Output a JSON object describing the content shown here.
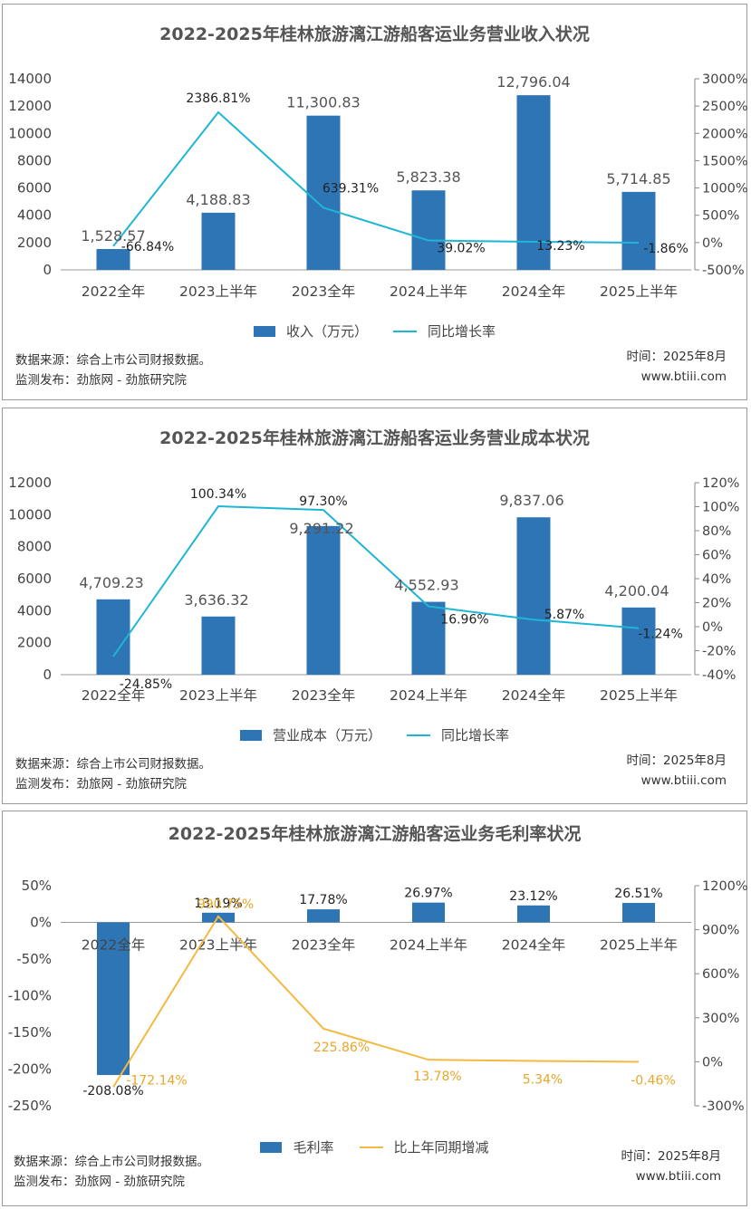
{
  "charts": [
    {
      "title": "2022-2025年桂林旅游漓江游船客运业务营业收入状况",
      "source_label": "数据来源：综合上市公司财报数据。",
      "publisher_label": "监测发布：劲旅网 - 劲旅研究院",
      "date_label": "时间：2025年8月",
      "site_label": "www.btiii.com",
      "legend_bar": "收入（万元）",
      "legend_line": "同比增长率",
      "line_color": "#1FB6D6"
    },
    {
      "title": "2022-2025年桂林旅游漓江游船客运业务营业成本状况",
      "source_label": "数据来源：综合上市公司财报数据。",
      "publisher_label": "监测发布：劲旅网 - 劲旅研究院",
      "date_label": "时间：2025年8月",
      "site_label": "www.btiii.com",
      "legend_bar": "营业成本（万元）",
      "legend_line": "同比增长率",
      "line_color": "#1FB6D6"
    },
    {
      "title": "2022-2025年桂林旅游漓江游船客运业务毛利率状况",
      "source_label": "数据来源：综合上市公司财报数据。",
      "publisher_label": "监测发布：劲旅网 - 劲旅研究院",
      "date_label": "时间：2025年8月",
      "site_label": "www.btiii.com",
      "legend_bar": "毛利率",
      "legend_line": "比上年同期增减",
      "line_color": "#F4B942"
    }
  ],
  "chart_data": [
    {
      "type": "bar",
      "categories": [
        "2022全年",
        "2023上半年",
        "2023全年",
        "2024上半年",
        "2024全年",
        "2025上半年"
      ],
      "series": [
        {
          "name": "收入（万元）",
          "type": "bar",
          "axis": "left",
          "values": [
            1528.57,
            4188.83,
            11300.83,
            5823.38,
            12796.04,
            5714.85
          ],
          "labels": [
            "1,528.57",
            "4,188.83",
            "11,300.83",
            "5,823.38",
            "12,796.04",
            "5,714.85"
          ],
          "color": "#2E75B6"
        },
        {
          "name": "同比增长率",
          "type": "line",
          "axis": "right",
          "values": [
            -66.84,
            2386.81,
            639.31,
            39.02,
            13.23,
            -1.86
          ],
          "labels": [
            "-66.84%",
            "2386.81%",
            "639.31%",
            "39.02%",
            "13.23%",
            "-1.86%"
          ],
          "color": "#1FB6D6"
        }
      ],
      "ylim_left": [
        0,
        14000
      ],
      "yticks_left": [
        "0",
        "2000",
        "4000",
        "6000",
        "8000",
        "10000",
        "12000",
        "14000"
      ],
      "ylim_right": [
        -500,
        3000
      ],
      "yticks_right": [
        "-500%",
        "0%",
        "500%",
        "1000%",
        "1500%",
        "2000%",
        "2500%",
        "3000%"
      ],
      "legend": "bottom",
      "grid": false
    },
    {
      "type": "bar",
      "categories": [
        "2022全年",
        "2023上半年",
        "2023全年",
        "2024上半年",
        "2024全年",
        "2025上半年"
      ],
      "series": [
        {
          "name": "营业成本（万元）",
          "type": "bar",
          "axis": "left",
          "values": [
            4709.23,
            3636.32,
            9291.22,
            4552.93,
            9837.06,
            4200.04
          ],
          "labels": [
            "4,709.23",
            "3,636.32",
            "9,291.22",
            "4,552.93",
            "9,837.06",
            "4,200.04"
          ],
          "color": "#2E75B6"
        },
        {
          "name": "同比增长率",
          "type": "line",
          "axis": "right",
          "values": [
            -24.85,
            100.34,
            97.3,
            16.96,
            5.87,
            -1.24
          ],
          "labels": [
            "-24.85%",
            "100.34%",
            "97.30%",
            "16.96%",
            "5.87%",
            "-1.24%"
          ],
          "color": "#1FB6D6"
        }
      ],
      "ylim_left": [
        0,
        12000
      ],
      "yticks_left": [
        "0",
        "2000",
        "4000",
        "6000",
        "8000",
        "10000",
        "12000"
      ],
      "ylim_right": [
        -40,
        120
      ],
      "yticks_right": [
        "-40%",
        "-20%",
        "0%",
        "20%",
        "40%",
        "60%",
        "80%",
        "100%",
        "120%"
      ],
      "legend": "bottom",
      "grid": false
    },
    {
      "type": "bar",
      "categories": [
        "2022全年",
        "2023上半年",
        "2023全年",
        "2024上半年",
        "2024全年",
        "2025上半年"
      ],
      "series": [
        {
          "name": "毛利率",
          "type": "bar",
          "axis": "left",
          "values": [
            -208.08,
            13.19,
            17.78,
            26.97,
            23.12,
            26.51
          ],
          "labels": [
            "-208.08%",
            "13.19%",
            "17.78%",
            "26.97%",
            "23.12%",
            "26.51%"
          ],
          "color": "#2E75B6"
        },
        {
          "name": "比上年同期增减",
          "type": "line",
          "axis": "right",
          "values": [
            -172.14,
            990.75,
            225.86,
            13.78,
            5.34,
            -0.46
          ],
          "labels": [
            "-172.14%",
            "990.75%",
            "225.86%",
            "13.78%",
            "5.34%",
            "-0.46%"
          ],
          "color": "#F4B942"
        }
      ],
      "ylim_left": [
        -250,
        50
      ],
      "yticks_left": [
        "-250%",
        "-200%",
        "-150%",
        "-100%",
        "-50%",
        "0%",
        "50%"
      ],
      "ylim_right": [
        -300,
        1200
      ],
      "yticks_right": [
        "-300%",
        "0%",
        "300%",
        "600%",
        "900%",
        "1200%"
      ],
      "legend": "bottom",
      "grid": false
    }
  ]
}
